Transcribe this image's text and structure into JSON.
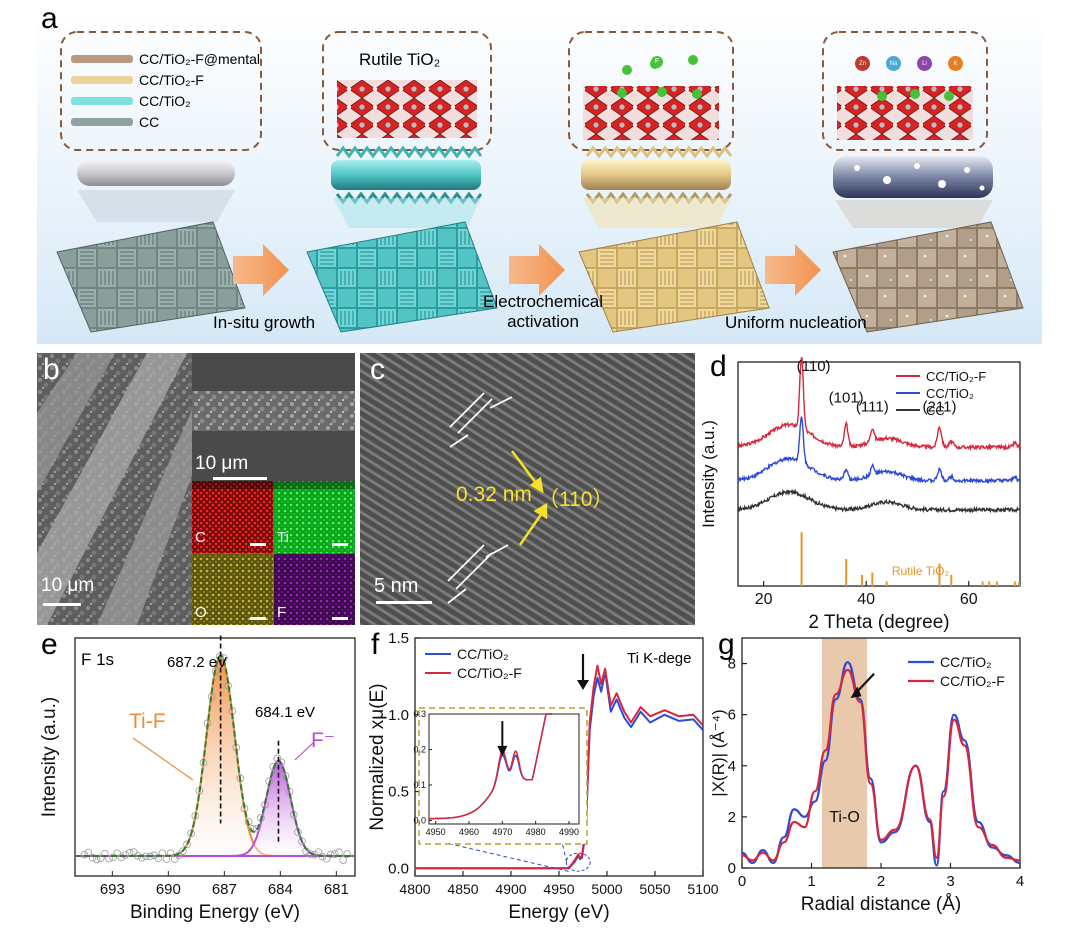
{
  "panel_a": {
    "letter": "a",
    "legend": [
      {
        "label": "CC/TiO₂-F@mental",
        "color": "#b99a80"
      },
      {
        "label": "CC/TiO₂-F",
        "color": "#ead49a"
      },
      {
        "label": "CC/TiO₂",
        "color": "#7ee0df"
      },
      {
        "label": "CC",
        "color": "#8fa3a0"
      }
    ],
    "box2_title": "Rutile TiO₂",
    "step1": "In-situ growth",
    "step2_line1": "Electrochemical",
    "step2_line2": "activation",
    "step3": "Uniform nucleation",
    "ions": [
      {
        "label": "Zn",
        "color": "#c0392b"
      },
      {
        "label": "Na",
        "color": "#4aa8d8"
      },
      {
        "label": "Li",
        "color": "#8e44ad"
      },
      {
        "label": "K",
        "color": "#e67e22"
      }
    ],
    "fluorine_label": "F"
  },
  "panel_b": {
    "letter": "b",
    "scale_main": "10 μm",
    "scale_inset": "10 μm",
    "maps": [
      {
        "label": "C",
        "color": "#d31010"
      },
      {
        "label": "Ti",
        "color": "#22d838"
      },
      {
        "label": "O",
        "color": "#b8a828"
      },
      {
        "label": "F",
        "color": "#8a1aa0"
      }
    ]
  },
  "panel_c": {
    "letter": "c",
    "d_spacing": "0.32 nm",
    "plane": "（110）",
    "scale": "5 nm"
  },
  "panel_e": {
    "letter": "e",
    "region": "F 1s",
    "peak1": "687.2 eV",
    "peak2": "684.1 eV",
    "label1": "Ti-F",
    "label2": "F⁻"
  },
  "panel_f": {
    "letter": "f",
    "edge_label": "Ti K-dege"
  },
  "panel_g": {
    "letter": "g",
    "shell_label": "Ti-O"
  },
  "chart_data": [
    {
      "panel": "d",
      "type": "line",
      "xlabel": "2 Theta (degree)",
      "ylabel": "Intensity (a.u.)",
      "xlim": [
        15,
        70
      ],
      "xticks": [
        "20",
        "40",
        "60"
      ],
      "legend_position": "top-right",
      "series": [
        {
          "name": "CC/TiO₂-F",
          "color": "#d6283c",
          "baseline": 0.62,
          "peaks": [
            [
              25,
              0.1,
              4
            ],
            [
              27.4,
              0.32,
              0.35
            ],
            [
              36.1,
              0.1,
              0.35
            ],
            [
              41.2,
              0.06,
              0.35
            ],
            [
              44,
              0.04,
              3
            ],
            [
              54.3,
              0.09,
              0.4
            ],
            [
              56.6,
              0.025,
              0.4
            ],
            [
              69,
              0.02,
              0.3
            ]
          ]
        },
        {
          "name": "CC/TiO₂",
          "color": "#2d4bd8",
          "baseline": 0.47,
          "peaks": [
            [
              25,
              0.1,
              4
            ],
            [
              27.4,
              0.2,
              0.35
            ],
            [
              36.1,
              0.05,
              0.35
            ],
            [
              41.2,
              0.04,
              0.35
            ],
            [
              44,
              0.04,
              3
            ],
            [
              54.3,
              0.05,
              0.4
            ],
            [
              56.6,
              0.02,
              0.4
            ],
            [
              69,
              0.02,
              0.3
            ]
          ]
        },
        {
          "name": "CC",
          "color": "#333333",
          "baseline": 0.34,
          "peaks": [
            [
              25,
              0.08,
              4
            ],
            [
              44,
              0.035,
              3
            ]
          ]
        }
      ],
      "peak_labels": [
        {
          "text": "(110)",
          "x": 27.4
        },
        {
          "text": "(101)",
          "x": 36.1
        },
        {
          "text": "(111)",
          "x": 41.2
        },
        {
          "text": "(211)",
          "x": 54.3
        }
      ],
      "reference": {
        "name": "Rutile TiO₂",
        "color": "#e8962a",
        "lines": [
          [
            27.4,
            0.24
          ],
          [
            36.1,
            0.12
          ],
          [
            39.2,
            0.05
          ],
          [
            41.2,
            0.06
          ],
          [
            44.0,
            0.02
          ],
          [
            54.3,
            0.1
          ],
          [
            56.6,
            0.05
          ],
          [
            62.7,
            0.02
          ],
          [
            64.0,
            0.02
          ],
          [
            65.5,
            0.02
          ],
          [
            69.0,
            0.02
          ],
          [
            69.8,
            0.015
          ]
        ]
      }
    },
    {
      "panel": "e",
      "type": "line",
      "xlabel": "Binding Energy (eV)",
      "ylabel": "Intensity (a.u.)",
      "xlim": [
        695,
        680
      ],
      "xticks": [
        "693",
        "690",
        "687",
        "684",
        "681"
      ],
      "components": [
        {
          "name": "Ti-F",
          "center": 687.2,
          "height": 0.8,
          "sigma": 0.75,
          "color": "#f08a3a"
        },
        {
          "name": "F⁻",
          "center": 684.1,
          "height": 0.38,
          "sigma": 0.65,
          "color": "#b94fd8"
        }
      ],
      "background": 0.03
    },
    {
      "panel": "f",
      "type": "line",
      "xlabel": "Energy (eV)",
      "ylabel": "Normalized xμ(E)",
      "xlim": [
        4800,
        5100
      ],
      "ylim": [
        -0.05,
        1.5
      ],
      "xticks": [
        "4800",
        "4850",
        "4900",
        "4950",
        "5000",
        "5050",
        "5100"
      ],
      "yticks": [
        "0.0",
        "0.5",
        "1.0",
        "1.5"
      ],
      "legend_position": "top-left",
      "series": [
        {
          "name": "CC/TiO₂",
          "color": "#2d4bd8",
          "x": [
            4800,
            4960,
            4966,
            4970,
            4972,
            4974,
            4978,
            4982,
            4986,
            4990,
            4994,
            4998,
            5004,
            5010,
            5018,
            5025,
            5035,
            5045,
            5060,
            5075,
            5090,
            5100
          ],
          "y": [
            0.0,
            0.0,
            0.04,
            0.08,
            0.06,
            0.07,
            0.25,
            0.9,
            1.12,
            1.24,
            1.15,
            1.28,
            1.02,
            1.1,
            0.98,
            0.92,
            1.02,
            0.95,
            1.0,
            0.96,
            0.97,
            0.9
          ]
        },
        {
          "name": "CC/TiO₂-F",
          "color": "#d6283c",
          "x": [
            4800,
            4960,
            4966,
            4970,
            4972,
            4974,
            4978,
            4982,
            4986,
            4990,
            4994,
            4998,
            5004,
            5010,
            5018,
            5025,
            5035,
            5045,
            5060,
            5075,
            5090,
            5100
          ],
          "y": [
            0.0,
            0.0,
            0.05,
            0.09,
            0.07,
            0.08,
            0.28,
            0.95,
            1.18,
            1.32,
            1.2,
            1.3,
            1.06,
            1.14,
            1.02,
            0.95,
            1.05,
            0.99,
            1.03,
            0.99,
            1.0,
            0.93
          ]
        }
      ],
      "inset": {
        "xlim": [
          4948,
          4993
        ],
        "ylim": [
          -0.01,
          0.3
        ],
        "xticks": [
          "4950",
          "4960",
          "4970",
          "4980",
          "4990"
        ],
        "yticks": [
          "0.0",
          "0.1",
          "0.2",
          "0.3"
        ]
      }
    },
    {
      "panel": "g",
      "type": "line",
      "xlabel": "Radial distance (Å)",
      "ylabel": "|X(R)| (Å⁻⁴)",
      "xlim": [
        0,
        4
      ],
      "ylim": [
        0,
        9
      ],
      "xticks": [
        "0",
        "1",
        "2",
        "3",
        "4"
      ],
      "yticks": [
        "0",
        "2",
        "4",
        "6",
        "8"
      ],
      "legend_position": "top-right",
      "series": [
        {
          "name": "CC/TiO₂",
          "color": "#2d4bd8",
          "x": [
            0,
            0.15,
            0.3,
            0.45,
            0.6,
            0.75,
            0.9,
            1.05,
            1.2,
            1.35,
            1.52,
            1.7,
            1.85,
            2.0,
            2.2,
            2.5,
            2.7,
            2.8,
            2.9,
            3.05,
            3.2,
            3.4,
            3.6,
            3.8,
            4.0
          ],
          "y": [
            0.6,
            0.2,
            0.7,
            0.2,
            1.2,
            2.3,
            2.0,
            2.6,
            4.2,
            6.6,
            8.05,
            6.6,
            3.5,
            1.0,
            1.4,
            4.0,
            1.8,
            0.1,
            3.0,
            6.0,
            5.0,
            1.8,
            0.8,
            0.5,
            0.2
          ]
        },
        {
          "name": "CC/TiO₂-F",
          "color": "#d6283c",
          "x": [
            0,
            0.15,
            0.3,
            0.45,
            0.6,
            0.75,
            0.9,
            1.05,
            1.2,
            1.35,
            1.52,
            1.7,
            1.85,
            2.0,
            2.2,
            2.5,
            2.7,
            2.8,
            2.9,
            3.05,
            3.2,
            3.4,
            3.6,
            3.8,
            4.0
          ],
          "y": [
            0.5,
            0.3,
            0.6,
            0.3,
            1.0,
            1.8,
            1.6,
            3.0,
            4.6,
            6.8,
            7.75,
            6.5,
            3.3,
            1.1,
            1.5,
            4.0,
            1.9,
            0.4,
            2.8,
            5.8,
            4.8,
            1.6,
            0.9,
            0.4,
            0.3
          ]
        }
      ],
      "highlight": {
        "range": [
          1.15,
          1.8
        ],
        "color": "#e9c9ac",
        "label": "Ti-O"
      }
    }
  ]
}
